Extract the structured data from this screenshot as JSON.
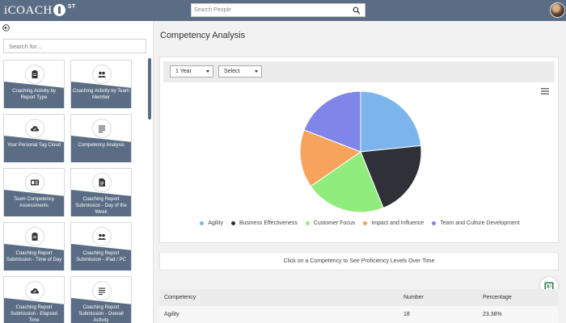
{
  "header": {
    "logo_left": "iCOACH",
    "logo_right": "",
    "logo_sup": "ST",
    "search_placeholder": "Search People",
    "search_icon": "search-icon"
  },
  "sidebar": {
    "back_icon": "back-arrow-icon",
    "search_placeholder": "Search for...",
    "tiles": [
      {
        "label": "Coaching Activity by Report Type",
        "icon": "clipboard-icon"
      },
      {
        "label": "Coaching Activity by Team Member",
        "icon": "team-icon"
      },
      {
        "label": "Your Personal Tag Cloud",
        "icon": "cloud-check-icon"
      },
      {
        "label": "Competency Analysis",
        "icon": "list-icon"
      },
      {
        "label": "Team Competency Assessments",
        "icon": "id-card-icon"
      },
      {
        "label": "Coaching Report Submission - Day of the Week",
        "icon": "document-icon"
      },
      {
        "label": "Coaching Report Submission - Time of Day",
        "icon": "clipboard-icon"
      },
      {
        "label": "Coaching Report Submission - iPad / PC",
        "icon": "team-icon"
      },
      {
        "label": "Coaching Report Submission - Elapsed Time",
        "icon": "cloud-check-icon"
      },
      {
        "label": "Coaching Report Submission - Overall Activity",
        "icon": "list-icon"
      }
    ]
  },
  "main": {
    "title": "Competency Analysis",
    "period_select": "1 Year",
    "filter_select": "Select",
    "menu_icon": "hamburger-menu-icon",
    "hint": "Click on a Competency to See Proficiency Levels Over Time",
    "export_icon": "excel-export-icon",
    "table": {
      "headers": [
        "Competency",
        "Number",
        "Percentage"
      ],
      "rows": [
        [
          "Agility",
          "18",
          "23.38%"
        ]
      ]
    }
  },
  "chart_data": {
    "type": "pie",
    "title": "",
    "categories": [
      "Agility",
      "Business Effectiveness",
      "Customer Focus",
      "Impact and Influence",
      "Team and Culture Development"
    ],
    "values": [
      23.38,
      20.5,
      21.5,
      15.5,
      19.12
    ],
    "colors": [
      "#7cb5ec",
      "#2f3038",
      "#90ed7d",
      "#f7a35c",
      "#8085e9"
    ],
    "legend_position": "bottom"
  }
}
